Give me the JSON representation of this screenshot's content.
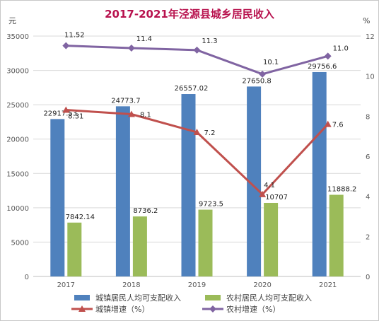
{
  "chart_data": {
    "type": "bar",
    "title": "2017-2021年泾源县城乡居民收入",
    "categories": [
      "2017",
      "2018",
      "2019",
      "2020",
      "2021"
    ],
    "y_left": {
      "unit": "元",
      "range": [
        0,
        35000
      ],
      "ticks": [
        0,
        5000,
        10000,
        15000,
        20000,
        25000,
        30000,
        35000
      ]
    },
    "y_right": {
      "unit": "%",
      "range": [
        0,
        12
      ],
      "ticks": [
        0,
        2,
        4,
        6,
        8,
        10,
        12
      ]
    },
    "bar_series": [
      {
        "name": "城镇居民人均可支配收入",
        "color": "#4f81bd",
        "values": [
          22917.53,
          24773.7,
          26557.02,
          27650.8,
          29756.6
        ],
        "labels": [
          "22917.53",
          "24773.7",
          "26557.02",
          "27650.8",
          "29756.6"
        ]
      },
      {
        "name": "农村居民人均可支配收入",
        "color": "#9bbb59",
        "values": [
          7842.14,
          8736.2,
          9723.5,
          10707,
          11888.2
        ],
        "labels": [
          "7842.14",
          "8736.2",
          "9723.5",
          "10707",
          "11888.2"
        ]
      }
    ],
    "line_series": [
      {
        "name": "城镇增速（%）",
        "color": "#c0504d",
        "marker": "triangle",
        "axis": "right",
        "values": [
          8.31,
          8.1,
          7.2,
          4.1,
          7.6
        ],
        "labels": [
          "8.31",
          "8.1",
          "7.2",
          "4.1",
          "7.6"
        ]
      },
      {
        "name": "农村增速（%）",
        "color": "#8064a2",
        "marker": "diamond",
        "axis": "right",
        "values": [
          11.52,
          11.4,
          11.3,
          10.1,
          11.0
        ],
        "labels": [
          "11.52",
          "11.4",
          "11.3",
          "10.1",
          "11.0"
        ]
      }
    ],
    "grid": true,
    "legend": "bottom"
  }
}
